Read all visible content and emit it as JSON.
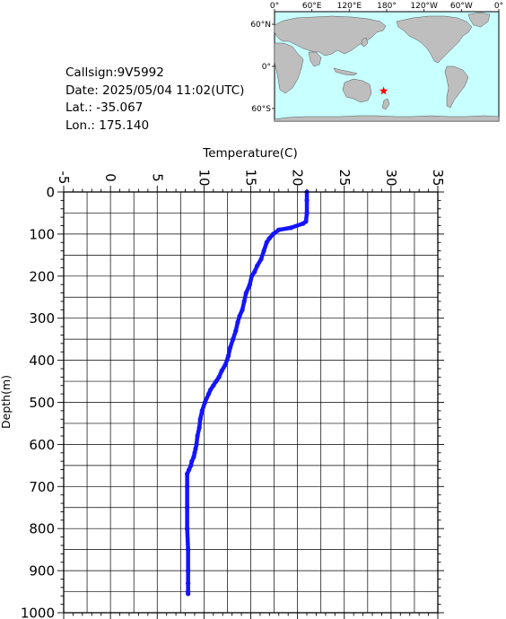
{
  "info": {
    "callsign": "Callsign:9V5992",
    "date": "Date:  2025/05/04 11:02(UTC)",
    "lat": "Lat.:  -35.067",
    "lon": "Lon.:  175.140"
  },
  "map": {
    "lon_labels": [
      "0°",
      "60°E",
      "120°E",
      "180°",
      "120°W",
      "60°W",
      "0°"
    ],
    "lat_labels": [
      "60°N",
      "0°",
      "60°S"
    ],
    "marker": {
      "lat": -35.067,
      "lon": 175.14,
      "color": "#ff0000"
    },
    "ocean_color": "#c8ffff",
    "land_color": "#bebebe"
  },
  "chart_data": {
    "type": "line",
    "title": "",
    "xlabel": "Temperature(C)",
    "ylabel": "Depth(m)",
    "xlim": [
      -5,
      35
    ],
    "ylim": [
      1000,
      0
    ],
    "x_ticks": [
      "-5",
      "0",
      "5",
      "10",
      "15",
      "20",
      "25",
      "30",
      "35"
    ],
    "y_ticks": [
      "0",
      "100",
      "200",
      "300",
      "400",
      "500",
      "600",
      "700",
      "800",
      "900",
      "1000"
    ],
    "grid": true,
    "line_color": "#1414ff",
    "series": [
      {
        "x": [
          21.0,
          21.0,
          21.0,
          20.9,
          20.6,
          19.3,
          18.0,
          17.4,
          17.0,
          16.7,
          16.4,
          16.1,
          15.7,
          15.4,
          15.1,
          14.9,
          14.5,
          14.3,
          14.1,
          13.8,
          13.6,
          13.4,
          13.1,
          12.8,
          12.6,
          12.3,
          11.9,
          11.6,
          11.3,
          11.0,
          10.7,
          10.5,
          10.1,
          9.8,
          9.6,
          9.5,
          9.3,
          9.2,
          9.1,
          9.0,
          8.9,
          8.7,
          8.6,
          8.4,
          8.2,
          8.2,
          8.2,
          8.2,
          8.3,
          8.3,
          8.3,
          8.3,
          8.3
        ],
        "y": [
          0,
          20,
          50,
          70,
          75,
          85,
          90,
          100,
          110,
          120,
          140,
          160,
          175,
          190,
          200,
          220,
          240,
          260,
          280,
          295,
          310,
          330,
          350,
          370,
          390,
          410,
          425,
          440,
          450,
          460,
          470,
          480,
          500,
          520,
          540,
          560,
          580,
          600,
          610,
          620,
          630,
          640,
          650,
          660,
          670,
          700,
          750,
          800,
          850,
          900,
          930,
          950,
          955
        ]
      }
    ]
  }
}
